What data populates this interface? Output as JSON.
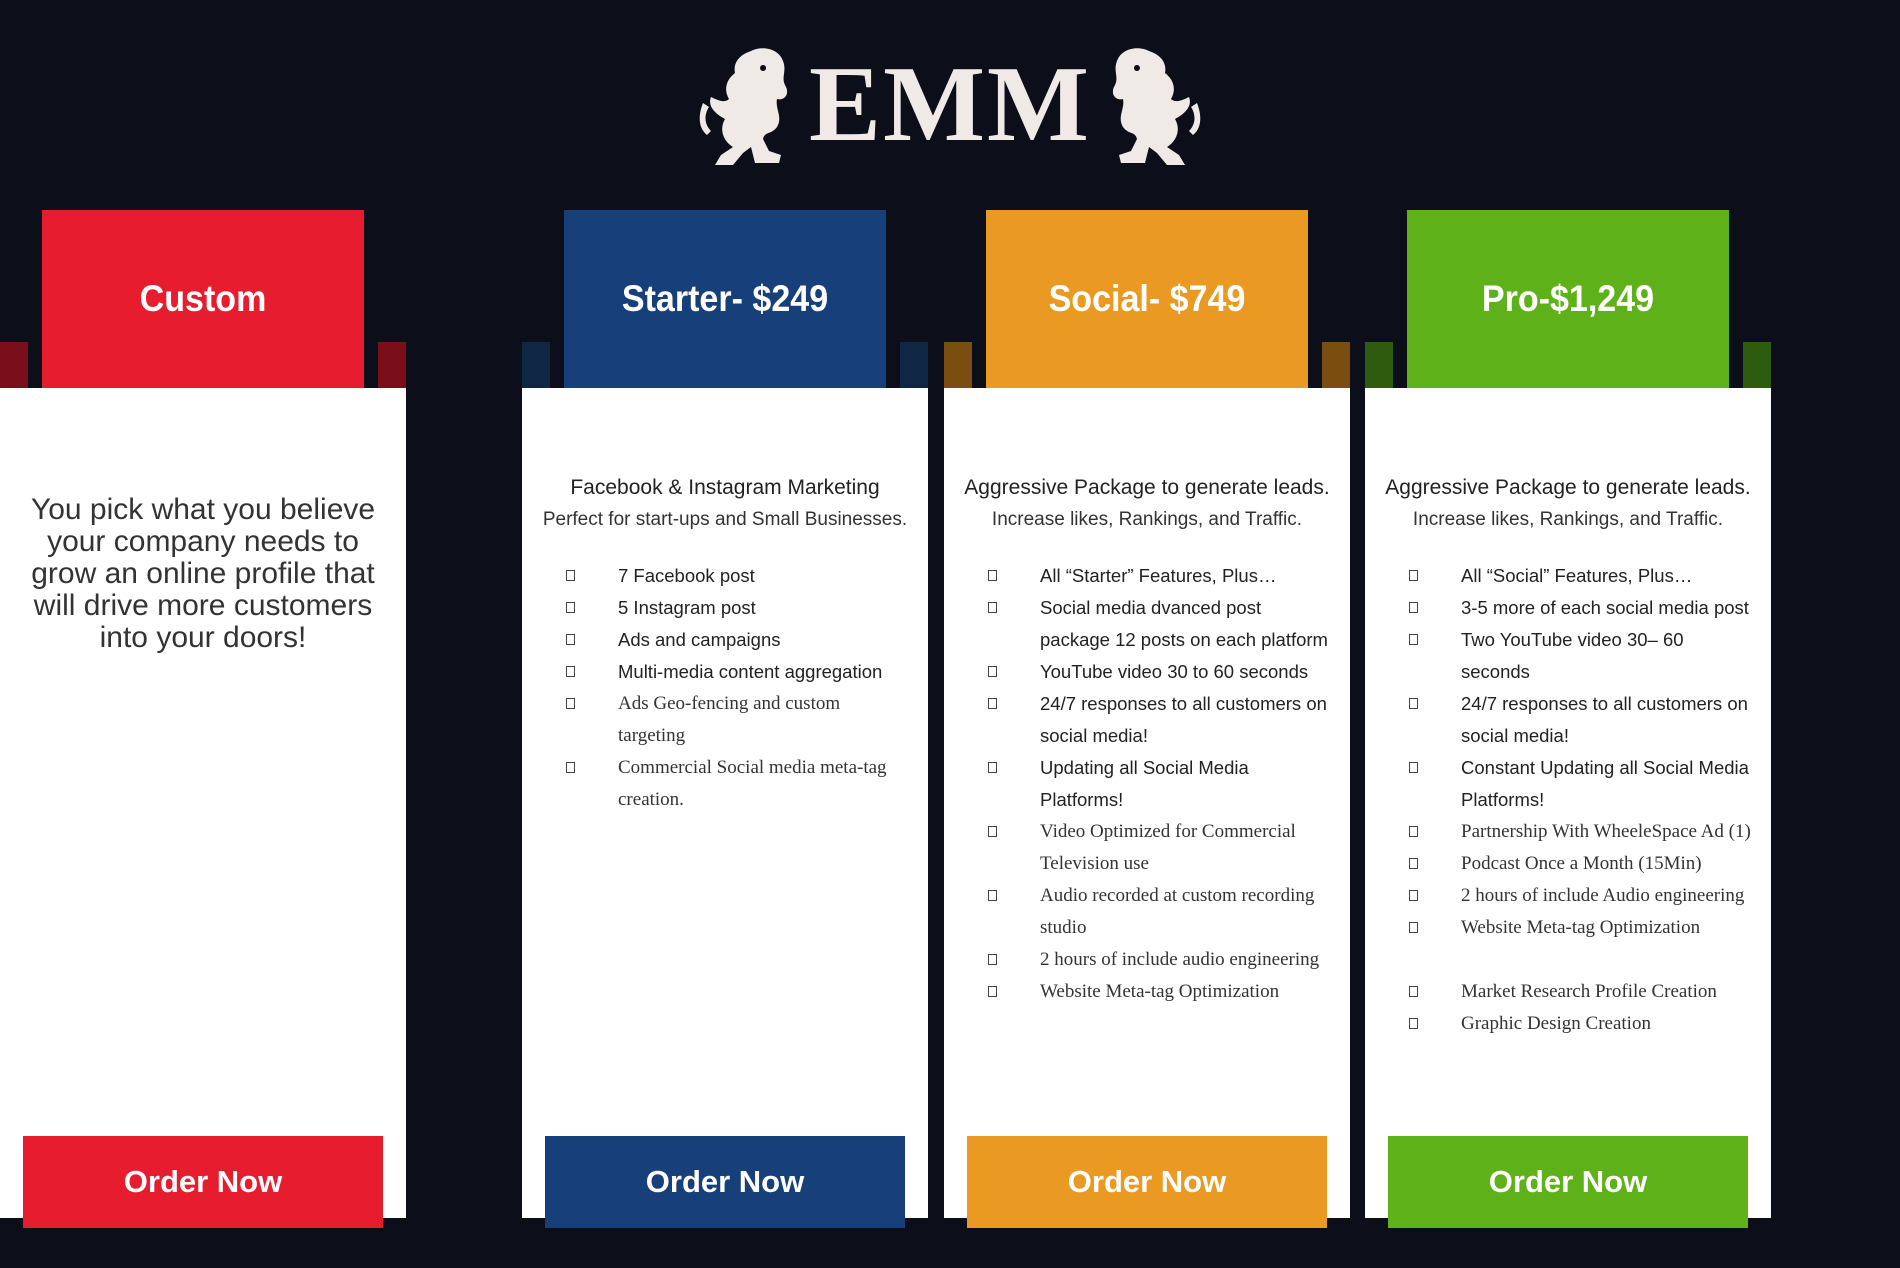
{
  "logo": {
    "text": "EMM"
  },
  "plans": [
    {
      "title": "Starter- $249",
      "color": "#173f79",
      "fold": "#0f2745",
      "intro_line1": "Facebook & Instagram Marketing",
      "intro_line2": "Perfect for start-ups and Small Businesses.",
      "features": [
        {
          "text": "7 Facebook post",
          "serif": false
        },
        {
          "text": "5 Instagram post",
          "serif": false
        },
        {
          "text": "Ads and campaigns",
          "serif": false
        },
        {
          "text": "Multi-media content aggregation",
          "serif": false
        },
        {
          "text": "Ads Geo-fencing and custom targeting",
          "serif": true
        },
        {
          "text": "Commercial Social media meta-tag creation.",
          "serif": true
        }
      ],
      "order_label": "Order Now"
    },
    {
      "title": "Social- $749",
      "color": "#ea9a22",
      "fold": "#7a4e10",
      "intro_line1": "Aggressive Package to generate leads.",
      "intro_line2": "Increase likes, Rankings, and Traffic.",
      "features": [
        {
          "text": "All “Starter” Features, Plus…",
          "serif": false
        },
        {
          "text": "Social media dvanced post package 12 posts on each platform",
          "serif": false
        },
        {
          "text": "YouTube video 30 to 60 seconds",
          "serif": false
        },
        {
          "text": " 24/7 responses to all customers on social media!",
          "serif": false
        },
        {
          "text": "Updating all Social Media Platforms!",
          "serif": false
        },
        {
          "text": "Video Optimized for Commercial Television use",
          "serif": true
        },
        {
          "text": "Audio recorded at custom recording studio",
          "serif": true
        },
        {
          "text": "2 hours of include audio engineering",
          "serif": true
        },
        {
          "text": "Website Meta-tag Optimization",
          "serif": true
        }
      ],
      "order_label": "Order Now"
    },
    {
      "title": "Pro-$1,249",
      "color": "#5fb11a",
      "fold": "#2e5b0d",
      "intro_line1": "Aggressive Package to generate leads.",
      "intro_line2": "Increase likes, Rankings, and Traffic.",
      "features": [
        {
          "text": "All “Social” Features, Plus…",
          "serif": false
        },
        {
          "text": "3-5 more of each social media post",
          "serif": false
        },
        {
          "text": "Two YouTube video 30– 60 seconds",
          "serif": false
        },
        {
          "text": " 24/7 responses to all customers on social media!",
          "serif": false
        },
        {
          "text": "Constant Updating all Social Media Platforms!",
          "serif": false
        },
        {
          "text": "Partnership With WheeleSpace Ad (1)",
          "serif": true
        },
        {
          "text": "Podcast Once a Month (15Min)",
          "serif": true
        },
        {
          "text": "2 hours of include Audio engineering",
          "serif": true
        },
        {
          "text": "Website Meta-tag Optimization",
          "serif": true
        },
        {
          "text": "Market Research Profile Creation",
          "serif": true,
          "gap": true
        },
        {
          "text": "Graphic Design Creation",
          "serif": true
        }
      ],
      "order_label": "Order Now"
    },
    {
      "title": "Custom",
      "color": "#e81c2f",
      "fold": "#7b0f19",
      "custom_text": "You pick what you believe your company needs to grow an online profile that will drive more customers into your doors!",
      "features": [],
      "order_label": "Order Now"
    }
  ]
}
